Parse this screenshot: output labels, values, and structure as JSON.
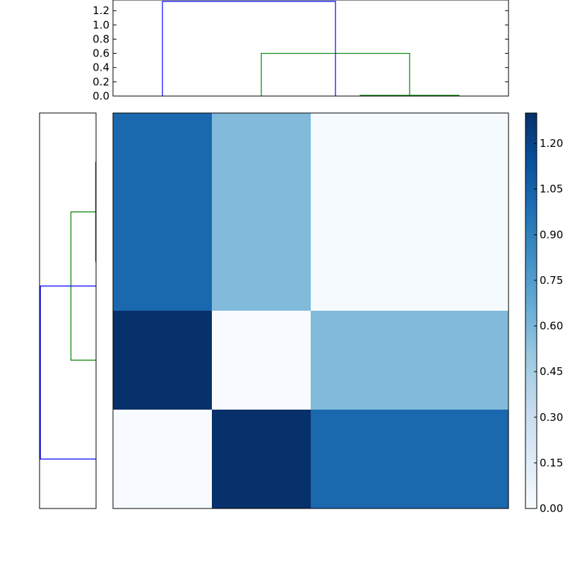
{
  "chart_data": [
    {
      "type": "dendrogram",
      "orientation": "top",
      "ylim": [
        0,
        1.35
      ],
      "yticks": [
        "0.0",
        "0.2",
        "0.4",
        "0.6",
        "0.8",
        "1.0",
        "1.2"
      ],
      "leaves": 4,
      "links": [
        {
          "left": 3,
          "right": 4,
          "height": 0.01,
          "color": "#008000"
        },
        {
          "left": 2,
          "right": 3.5,
          "height": 0.6,
          "color": "#008000"
        },
        {
          "left": 1,
          "right": 2.75,
          "height": 1.33,
          "color": "#0000ff"
        }
      ]
    },
    {
      "type": "dendrogram",
      "orientation": "left",
      "leaves": 4,
      "links": [
        {
          "left": 1,
          "right": 2,
          "height": 0.01,
          "color": "#008000"
        },
        {
          "left": 1.5,
          "right": 3,
          "height": 0.6,
          "color": "#008000"
        },
        {
          "left": 2.25,
          "right": 4,
          "height": 1.33,
          "color": "#0000ff"
        }
      ]
    },
    {
      "type": "heatmap",
      "colormap": "Blues",
      "vmin": 0,
      "vmax": 1.3,
      "values": [
        [
          1.02,
          0.58,
          0.01,
          0.01
        ],
        [
          1.02,
          0.58,
          0.01,
          0.01
        ],
        [
          1.33,
          0.0,
          0.58,
          0.58
        ],
        [
          0.0,
          1.33,
          1.02,
          1.02
        ]
      ],
      "colorbar_ticks": [
        "0.00",
        "0.15",
        "0.30",
        "0.45",
        "0.60",
        "0.75",
        "0.90",
        "1.05",
        "1.20"
      ]
    }
  ]
}
